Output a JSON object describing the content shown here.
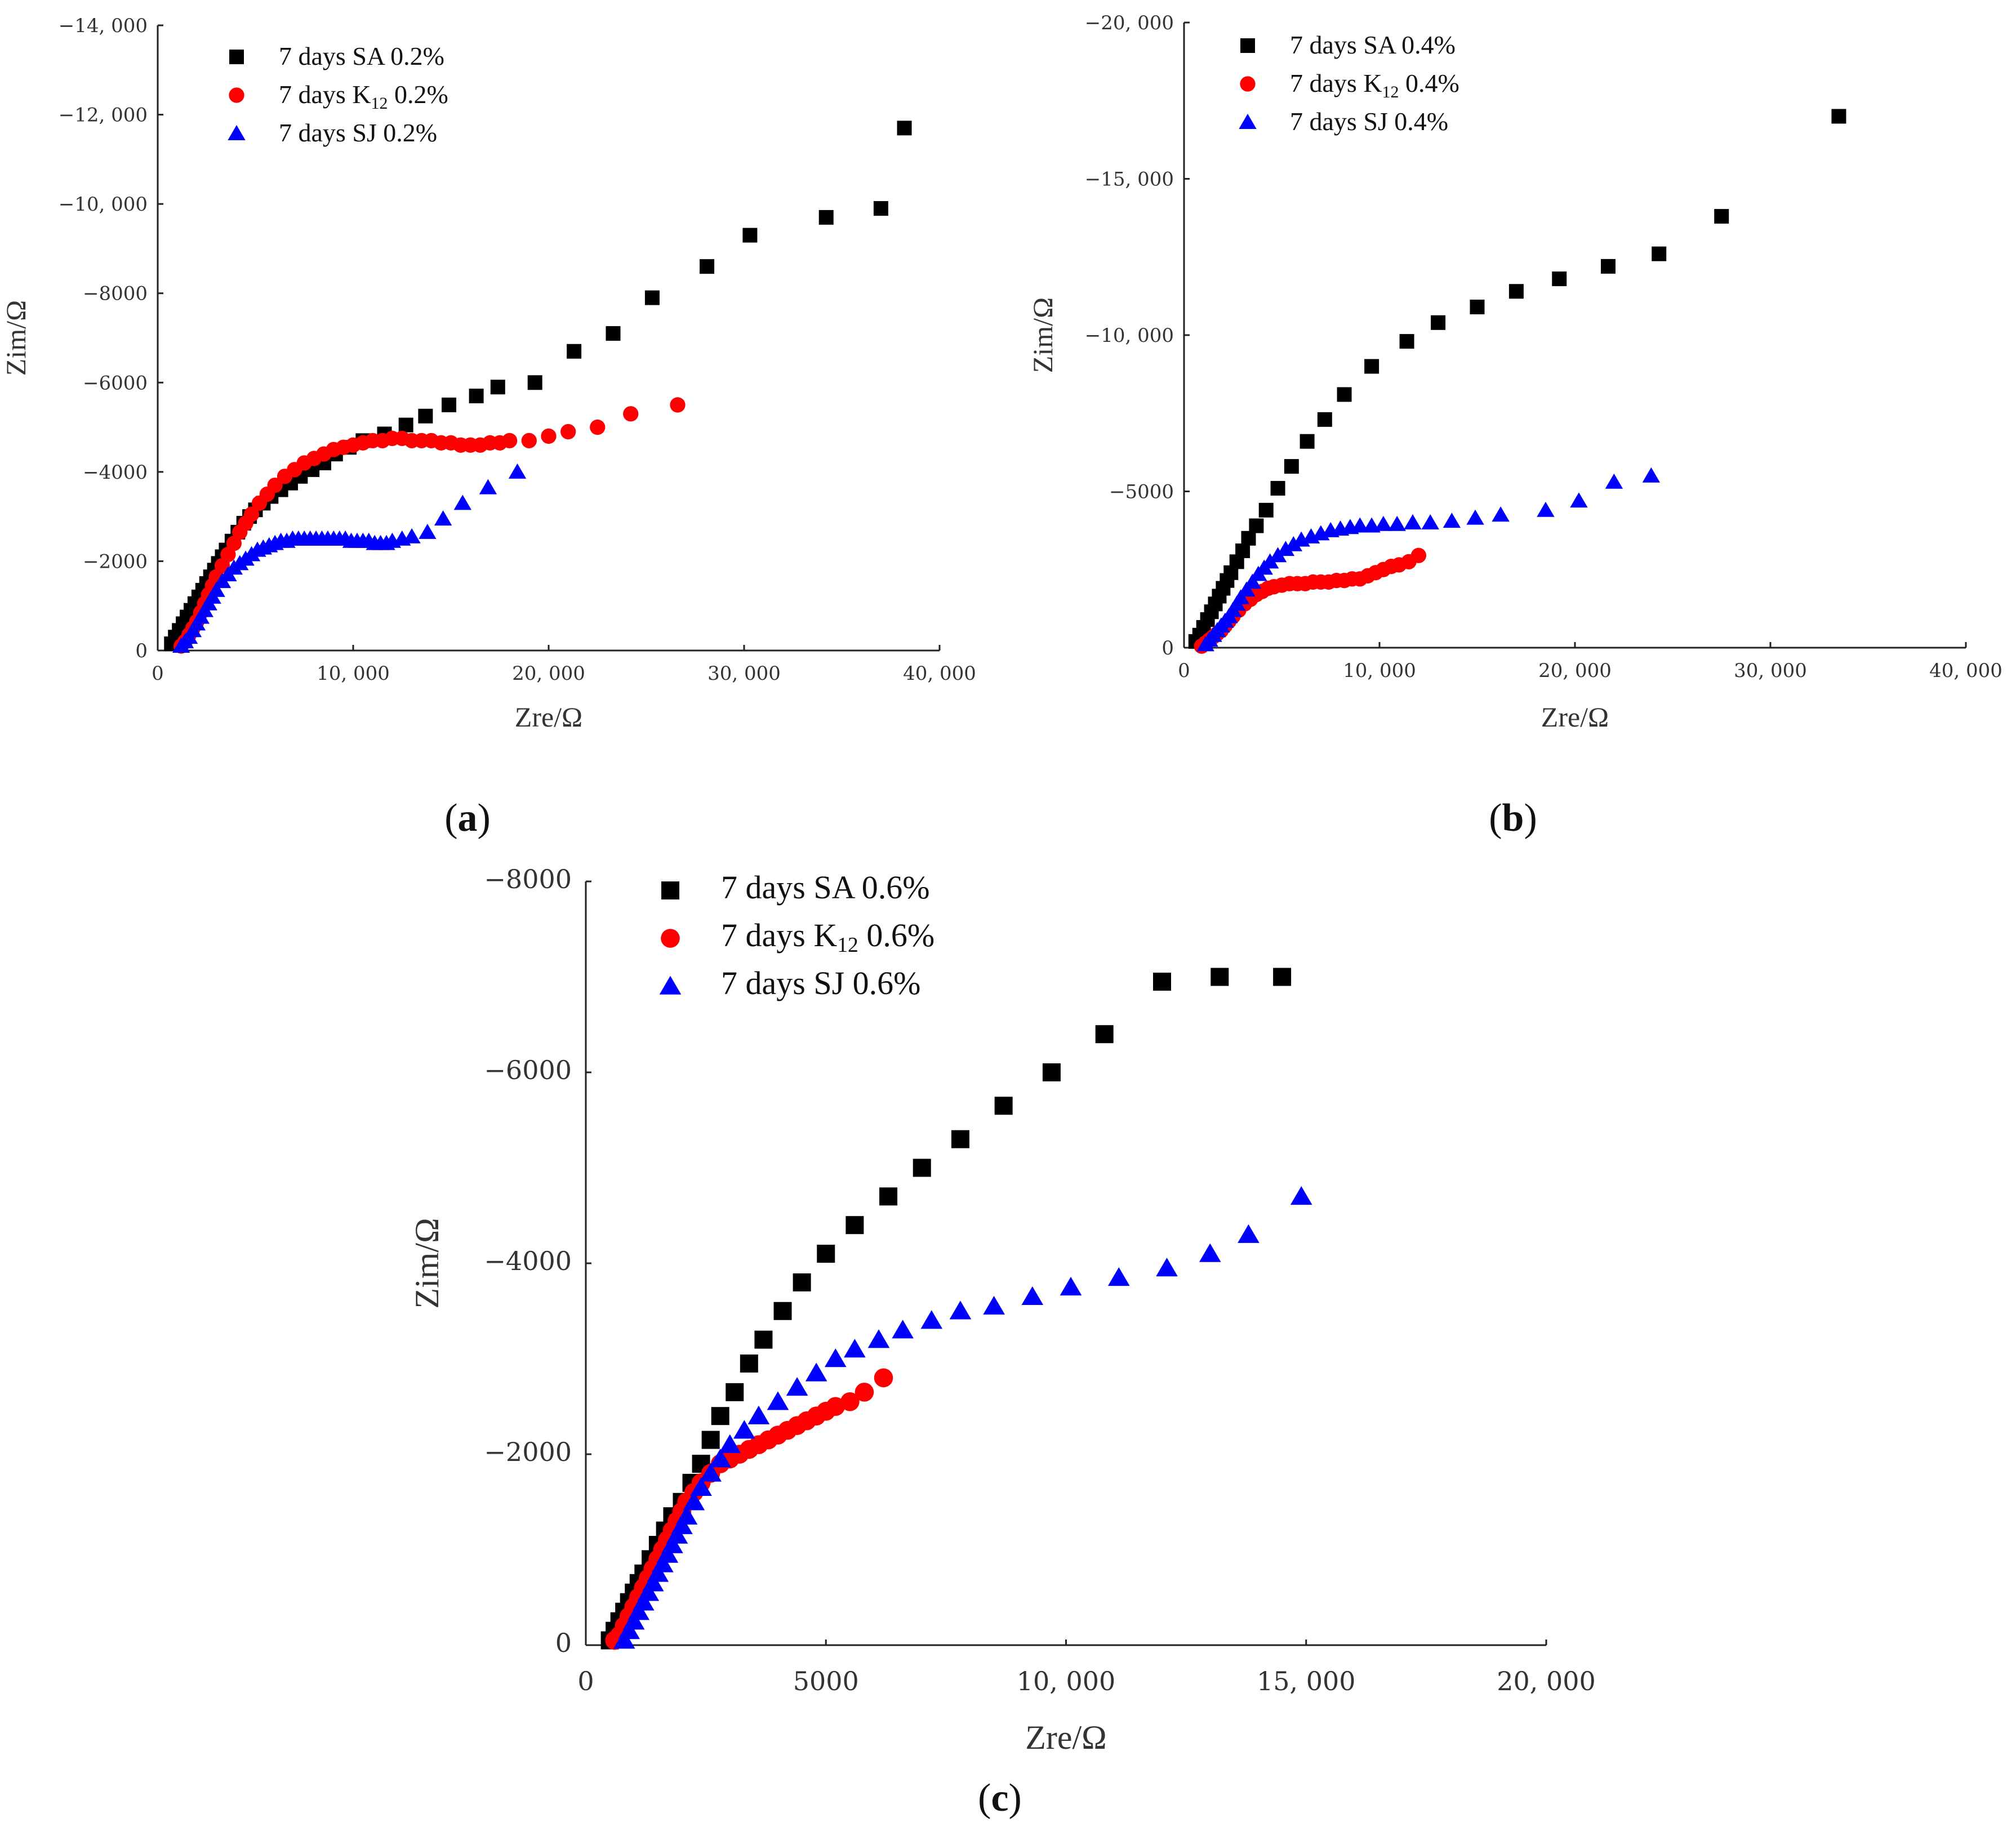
{
  "colors": {
    "SA": "#000000",
    "K12": "#ff0000",
    "SJ": "#0000ff",
    "axis": "#222222"
  },
  "chart_data": [
    {
      "id": "a",
      "type": "scatter",
      "panel_label": {
        "open": "(",
        "letter": "a",
        "close": ")"
      },
      "xlabel": "Zre/Ω",
      "ylabel": "Zim/Ω",
      "xlim": [
        0,
        40000
      ],
      "ylim": [
        0,
        -14000
      ],
      "xticks": [
        0,
        10000,
        20000,
        30000,
        40000
      ],
      "xtick_labels": [
        "0",
        "10, 000",
        "20, 000",
        "30, 000",
        "40, 000"
      ],
      "yticks": [
        0,
        -2000,
        -4000,
        -6000,
        -8000,
        -10000,
        -12000,
        -14000
      ],
      "ytick_labels": [
        "0",
        "−2000",
        "−4000",
        "−6000",
        "−8000",
        "−10, 000",
        "−12, 000",
        "−14, 000"
      ],
      "legend_position": "top-left",
      "series": [
        {
          "key": "SA",
          "marker": "square",
          "legend_main": "7 days SA 0.2%",
          "legend_pre": "",
          "legend_sub": "",
          "legend_post": "",
          "x": [
            700,
            900,
            1100,
            1300,
            1500,
            1700,
            1900,
            2100,
            2300,
            2500,
            2700,
            2900,
            3100,
            3300,
            3500,
            3800,
            4100,
            4400,
            4700,
            5000,
            5400,
            5800,
            6300,
            6800,
            7300,
            7900,
            8500,
            9100,
            9800,
            10500,
            11600,
            12700,
            13700,
            14900,
            16300,
            17400,
            19300,
            21300,
            23300,
            25300,
            28100,
            30300,
            34200,
            37000,
            38200
          ],
          "y": [
            -150,
            -300,
            -450,
            -600,
            -750,
            -900,
            -1050,
            -1200,
            -1350,
            -1500,
            -1650,
            -1800,
            -1950,
            -2100,
            -2250,
            -2450,
            -2650,
            -2850,
            -3000,
            -3150,
            -3300,
            -3450,
            -3600,
            -3750,
            -3900,
            -4050,
            -4200,
            -4400,
            -4550,
            -4700,
            -4850,
            -5050,
            -5250,
            -5500,
            -5700,
            -5900,
            -6000,
            -6700,
            -7100,
            -7900,
            -8600,
            -9300,
            -9700,
            -9900,
            -11700
          ]
        },
        {
          "key": "K12",
          "marker": "circle",
          "legend_main": "",
          "legend_pre": "7 days K",
          "legend_sub": "12",
          "legend_post": " 0.2%",
          "x": [
            1200,
            1400,
            1600,
            1800,
            2000,
            2200,
            2400,
            2600,
            2800,
            3000,
            3300,
            3600,
            3900,
            4200,
            4500,
            4800,
            5200,
            5600,
            6000,
            6500,
            7000,
            7500,
            8000,
            8500,
            9000,
            9500,
            10000,
            10500,
            11000,
            11500,
            12000,
            12500,
            13000,
            13500,
            14000,
            14500,
            15000,
            15500,
            16000,
            16500,
            17000,
            17500,
            18000,
            19000,
            20000,
            21000,
            22500,
            24200,
            26600
          ],
          "y": [
            -100,
            -200,
            -350,
            -500,
            -650,
            -850,
            -1050,
            -1250,
            -1450,
            -1650,
            -1900,
            -2150,
            -2400,
            -2650,
            -2850,
            -3050,
            -3300,
            -3500,
            -3700,
            -3900,
            -4050,
            -4200,
            -4300,
            -4400,
            -4500,
            -4550,
            -4600,
            -4650,
            -4700,
            -4700,
            -4750,
            -4750,
            -4700,
            -4700,
            -4700,
            -4650,
            -4650,
            -4600,
            -4600,
            -4600,
            -4650,
            -4650,
            -4700,
            -4700,
            -4800,
            -4900,
            -5000,
            -5300,
            -5500
          ]
        },
        {
          "key": "SJ",
          "marker": "triangle",
          "legend_main": "7 days SJ 0.2%",
          "legend_pre": "",
          "legend_sub": "",
          "legend_post": "",
          "x": [
            1200,
            1400,
            1600,
            1800,
            2000,
            2200,
            2400,
            2600,
            2800,
            3000,
            3300,
            3600,
            3900,
            4200,
            4500,
            4800,
            5100,
            5400,
            5700,
            6000,
            6300,
            6600,
            6900,
            7200,
            7500,
            7800,
            8100,
            8400,
            8700,
            9000,
            9300,
            9600,
            9900,
            10200,
            10500,
            10800,
            11100,
            11400,
            11700,
            12000,
            12500,
            13000,
            13800,
            14600,
            15600,
            16900,
            18400
          ],
          "y": [
            -100,
            -200,
            -300,
            -450,
            -600,
            -750,
            -900,
            -1050,
            -1200,
            -1350,
            -1550,
            -1700,
            -1850,
            -1950,
            -2050,
            -2150,
            -2250,
            -2300,
            -2350,
            -2400,
            -2450,
            -2450,
            -2500,
            -2500,
            -2500,
            -2500,
            -2500,
            -2500,
            -2500,
            -2500,
            -2500,
            -2500,
            -2450,
            -2450,
            -2450,
            -2450,
            -2400,
            -2400,
            -2400,
            -2450,
            -2500,
            -2550,
            -2650,
            -2950,
            -3300,
            -3650,
            -4000
          ]
        }
      ]
    },
    {
      "id": "b",
      "type": "scatter",
      "panel_label": {
        "open": "(",
        "letter": "b",
        "close": ")"
      },
      "xlabel": "Zre/Ω",
      "ylabel": "Zim/Ω",
      "xlim": [
        0,
        40000
      ],
      "ylim": [
        0,
        -20000
      ],
      "xticks": [
        0,
        10000,
        20000,
        30000,
        40000
      ],
      "xtick_labels": [
        "0",
        "10, 000",
        "20, 000",
        "30, 000",
        "40, 000"
      ],
      "yticks": [
        0,
        -5000,
        -10000,
        -15000,
        -20000
      ],
      "ytick_labels": [
        "0",
        "−5000",
        "−10, 000",
        "−15, 000",
        "−20, 000"
      ],
      "legend_position": "top-left",
      "series": [
        {
          "key": "SA",
          "marker": "square",
          "legend_main": "7 days SA 0.4%",
          "legend_pre": "",
          "legend_sub": "",
          "legend_post": "",
          "x": [
            600,
            800,
            1000,
            1200,
            1400,
            1600,
            1800,
            2000,
            2200,
            2400,
            2700,
            3000,
            3300,
            3700,
            4200,
            4800,
            5500,
            6300,
            7200,
            8200,
            9600,
            11400,
            13000,
            15000,
            17000,
            19200,
            21700,
            24300,
            27500,
            33500
          ],
          "y": [
            -200,
            -400,
            -650,
            -900,
            -1150,
            -1400,
            -1650,
            -1900,
            -2150,
            -2400,
            -2750,
            -3100,
            -3500,
            -3900,
            -4400,
            -5100,
            -5800,
            -6600,
            -7300,
            -8100,
            -9000,
            -9800,
            -10400,
            -10900,
            -11400,
            -11800,
            -12200,
            -12600,
            -13800,
            -17000
          ]
        },
        {
          "key": "K12",
          "marker": "circle",
          "legend_main": "",
          "legend_pre": "7 days K",
          "legend_sub": "12",
          "legend_post": " 0.4%",
          "x": [
            900,
            1100,
            1300,
            1500,
            1700,
            1900,
            2100,
            2300,
            2500,
            2800,
            3100,
            3400,
            3700,
            4000,
            4300,
            4600,
            5000,
            5400,
            5800,
            6200,
            6600,
            7000,
            7400,
            7800,
            8200,
            8600,
            9000,
            9400,
            9800,
            10200,
            10600,
            11000,
            11500,
            12000
          ],
          "y": [
            -50,
            -150,
            -250,
            -350,
            -450,
            -550,
            -700,
            -850,
            -1000,
            -1200,
            -1400,
            -1550,
            -1700,
            -1800,
            -1900,
            -1950,
            -2000,
            -2050,
            -2050,
            -2050,
            -2100,
            -2100,
            -2100,
            -2150,
            -2150,
            -2200,
            -2200,
            -2300,
            -2400,
            -2500,
            -2600,
            -2650,
            -2750,
            -2950
          ]
        },
        {
          "key": "SJ",
          "marker": "triangle",
          "legend_main": "7 days SJ 0.4%",
          "legend_pre": "",
          "legend_sub": "",
          "legend_post": "",
          "x": [
            1100,
            1300,
            1500,
            1700,
            1900,
            2100,
            2300,
            2500,
            2700,
            2900,
            3200,
            3500,
            3800,
            4100,
            4400,
            4800,
            5200,
            5600,
            6000,
            6500,
            7000,
            7500,
            8000,
            8500,
            9000,
            9600,
            10200,
            10900,
            11700,
            12600,
            13700,
            14900,
            16200,
            18500,
            20200,
            22000,
            23900
          ],
          "y": [
            -100,
            -250,
            -400,
            -550,
            -700,
            -850,
            -1000,
            -1200,
            -1400,
            -1600,
            -1850,
            -2100,
            -2350,
            -2550,
            -2750,
            -2950,
            -3150,
            -3300,
            -3450,
            -3550,
            -3650,
            -3750,
            -3800,
            -3850,
            -3900,
            -3900,
            -3950,
            -3950,
            -4000,
            -4000,
            -4050,
            -4150,
            -4250,
            -4400,
            -4700,
            -5300,
            -5500
          ]
        }
      ]
    },
    {
      "id": "c",
      "type": "scatter",
      "panel_label": {
        "open": "(",
        "letter": "c",
        "close": ")"
      },
      "xlabel": "Zre/Ω",
      "ylabel": "Zim/Ω",
      "xlim": [
        0,
        20000
      ],
      "ylim": [
        0,
        -8000
      ],
      "xticks": [
        0,
        5000,
        10000,
        15000,
        20000
      ],
      "xtick_labels": [
        "0",
        "5000",
        "10, 000",
        "15, 000",
        "20, 000"
      ],
      "yticks": [
        0,
        -2000,
        -4000,
        -6000,
        -8000
      ],
      "ytick_labels": [
        "0",
        "−2000",
        "−4000",
        "−6000",
        "−8000"
      ],
      "legend_position": "top-left",
      "series": [
        {
          "key": "SA",
          "marker": "square",
          "legend_main": "7 days SA 0.6%",
          "legend_pre": "",
          "legend_sub": "",
          "legend_post": "",
          "x": [
            500,
            600,
            700,
            800,
            900,
            1000,
            1100,
            1200,
            1350,
            1500,
            1650,
            1800,
            2000,
            2200,
            2400,
            2600,
            2800,
            3100,
            3400,
            3700,
            4100,
            4500,
            5000,
            5600,
            6300,
            7000,
            7800,
            8700,
            9700,
            10800,
            12000,
            13200,
            14500
          ],
          "y": [
            -50,
            -150,
            -250,
            -350,
            -450,
            -550,
            -650,
            -750,
            -900,
            -1050,
            -1200,
            -1350,
            -1500,
            -1700,
            -1900,
            -2150,
            -2400,
            -2650,
            -2950,
            -3200,
            -3500,
            -3800,
            -4100,
            -4400,
            -4700,
            -5000,
            -5300,
            -5650,
            -6000,
            -6400,
            -6950,
            -7000,
            -7000
          ]
        },
        {
          "key": "K12",
          "marker": "circle",
          "legend_main": "",
          "legend_pre": "7 days K",
          "legend_sub": "12",
          "legend_post": " 0.6%",
          "x": [
            600,
            700,
            800,
            900,
            1000,
            1100,
            1200,
            1300,
            1400,
            1500,
            1600,
            1700,
            1800,
            1900,
            2000,
            2100,
            2250,
            2400,
            2600,
            2800,
            3000,
            3200,
            3400,
            3600,
            3800,
            4000,
            4200,
            4400,
            4600,
            4800,
            5000,
            5200,
            5500,
            5800,
            6200
          ],
          "y": [
            -50,
            -100,
            -200,
            -300,
            -400,
            -500,
            -600,
            -700,
            -800,
            -900,
            -1000,
            -1100,
            -1200,
            -1300,
            -1400,
            -1500,
            -1600,
            -1700,
            -1800,
            -1900,
            -1950,
            -2000,
            -2050,
            -2100,
            -2150,
            -2200,
            -2250,
            -2300,
            -2350,
            -2400,
            -2450,
            -2500,
            -2550,
            -2650,
            -2800
          ]
        },
        {
          "key": "SJ",
          "marker": "triangle",
          "legend_main": "7 days SJ 0.6%",
          "legend_pre": "",
          "legend_sub": "",
          "legend_post": "",
          "x": [
            800,
            900,
            1000,
            1100,
            1200,
            1300,
            1400,
            1500,
            1600,
            1700,
            1800,
            1900,
            2000,
            2100,
            2250,
            2400,
            2600,
            2800,
            3000,
            3300,
            3600,
            4000,
            4400,
            4800,
            5200,
            5600,
            6100,
            6600,
            7200,
            7800,
            8500,
            9300,
            10100,
            11100,
            12100,
            13000,
            13800,
            14900
          ],
          "y": [
            -50,
            -150,
            -250,
            -350,
            -450,
            -550,
            -650,
            -750,
            -850,
            -950,
            -1050,
            -1150,
            -1250,
            -1350,
            -1500,
            -1650,
            -1800,
            -1950,
            -2100,
            -2250,
            -2400,
            -2550,
            -2700,
            -2850,
            -3000,
            -3100,
            -3200,
            -3300,
            -3400,
            -3500,
            -3550,
            -3650,
            -3750,
            -3850,
            -3950,
            -4100,
            -4300,
            -4700
          ]
        }
      ]
    }
  ]
}
